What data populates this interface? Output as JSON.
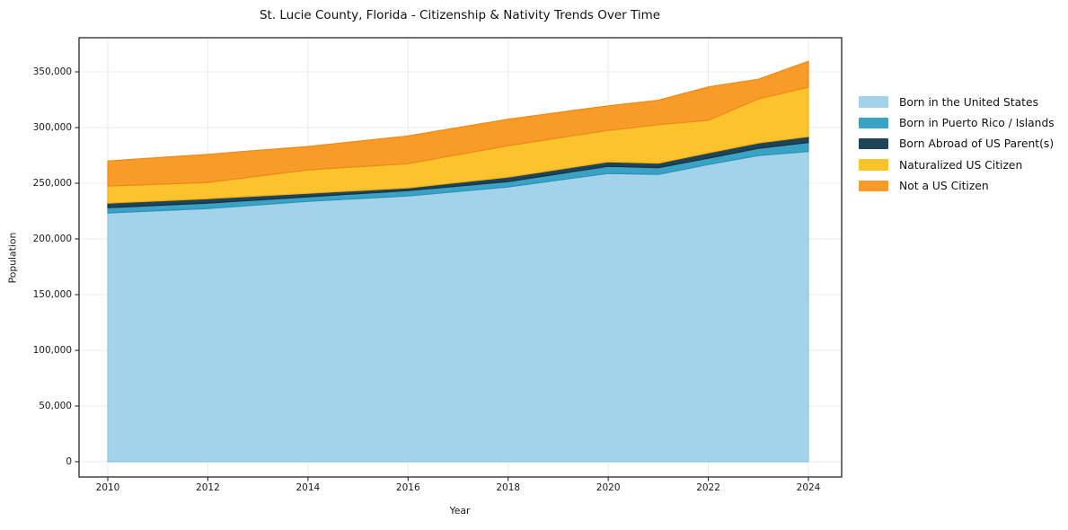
{
  "title": "St. Lucie County, Florida - Citizenship & Nativity Trends Over Time",
  "chart_data": {
    "type": "area",
    "stacked": true,
    "title": "St. Lucie County, Florida - Citizenship & Nativity Trends Over Time",
    "xlabel": "Year",
    "ylabel": "Population",
    "x": [
      2010,
      2011,
      2012,
      2013,
      2014,
      2015,
      2016,
      2017,
      2018,
      2019,
      2020,
      2021,
      2022,
      2023,
      2024
    ],
    "series": [
      {
        "name": "Born in the United States",
        "color": "#a3d3ea",
        "edge": "#8fc6e0",
        "values": [
          223300,
          225300,
          227300,
          230500,
          233700,
          236200,
          238600,
          242600,
          246700,
          252800,
          258800,
          258000,
          266800,
          274900,
          278500
        ]
      },
      {
        "name": "Born in Puerto Rico / Islands",
        "color": "#3aa3c5",
        "edge": "#2d92b4",
        "values": [
          4800,
          4850,
          4900,
          4500,
          4100,
          4450,
          4800,
          4800,
          4800,
          5600,
          6400,
          6000,
          5600,
          6500,
          8100
        ]
      },
      {
        "name": "Born Abroad of US Parent(s)",
        "color": "#1f4457",
        "edge": "#16323f",
        "values": [
          4100,
          4050,
          4000,
          3600,
          3200,
          2850,
          2500,
          3300,
          4100,
          4050,
          4000,
          4100,
          4900,
          4800,
          5300
        ]
      },
      {
        "name": "Naturalized US Citizen",
        "color": "#fcc32c",
        "edge": "#f0b01e",
        "values": [
          15300,
          14900,
          14500,
          17800,
          21000,
          21300,
          21700,
          25000,
          28200,
          28200,
          28200,
          34500,
          29200,
          39500,
          44300
        ]
      },
      {
        "name": "Not a US Citizen",
        "color": "#f89b28",
        "edge": "#ea8a1b",
        "values": [
          22500,
          23900,
          25300,
          23100,
          21000,
          22950,
          24900,
          24300,
          23700,
          22900,
          22100,
          21900,
          30000,
          17700,
          23300
        ]
      }
    ],
    "x_ticks": [
      2010,
      2012,
      2014,
      2016,
      2018,
      2020,
      2022,
      2024
    ],
    "y_ticks": [
      0,
      50000,
      100000,
      150000,
      200000,
      250000,
      300000,
      350000
    ],
    "y_tick_labels": [
      "0",
      "50,000",
      "100,000",
      "150,000",
      "200,000",
      "250,000",
      "300,000",
      "350,000"
    ],
    "grid": true,
    "legend_position": "right",
    "colors": {
      "grid": "#ebebeb",
      "frame": "#262626",
      "tick": "#262626",
      "background": "#ffffff"
    }
  }
}
